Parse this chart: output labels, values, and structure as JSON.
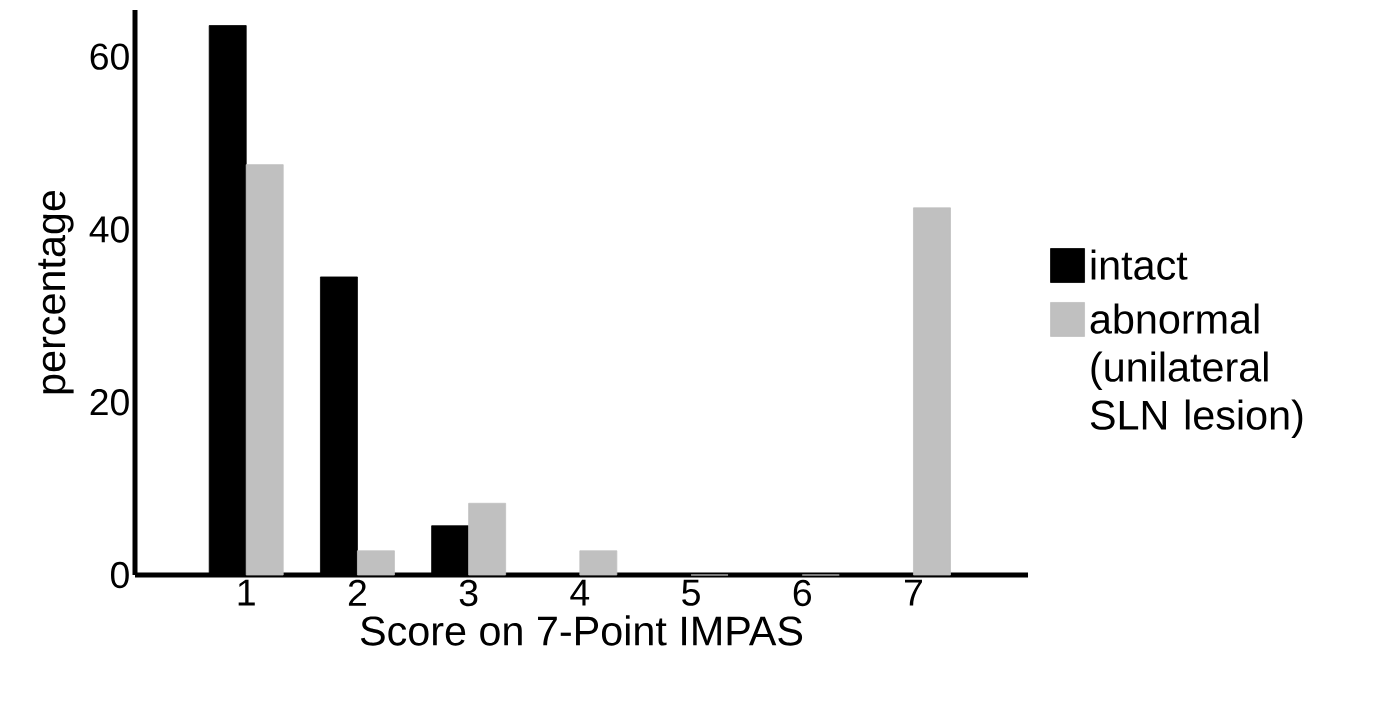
{
  "chart_data": {
    "type": "bar",
    "xlabel": "Score on 7-Point IMPAS",
    "ylabel": "percentage",
    "categories": [
      "1",
      "2",
      "3",
      "4",
      "5",
      "6",
      "7"
    ],
    "series": [
      {
        "name": "intact",
        "color": "#000000",
        "values": [
          63.6,
          34.5,
          5.7,
          0,
          0,
          0,
          0
        ]
      },
      {
        "name": "abnormal (unilateral SLN lesion)",
        "color": "#c0c0c0",
        "values": [
          47.5,
          2.8,
          8.3,
          2.8,
          0,
          0,
          42.5
        ]
      }
    ],
    "ylim": [
      0,
      65.4
    ],
    "yticks": [
      0,
      20,
      40,
      60
    ],
    "grid": false,
    "legend": "right"
  }
}
